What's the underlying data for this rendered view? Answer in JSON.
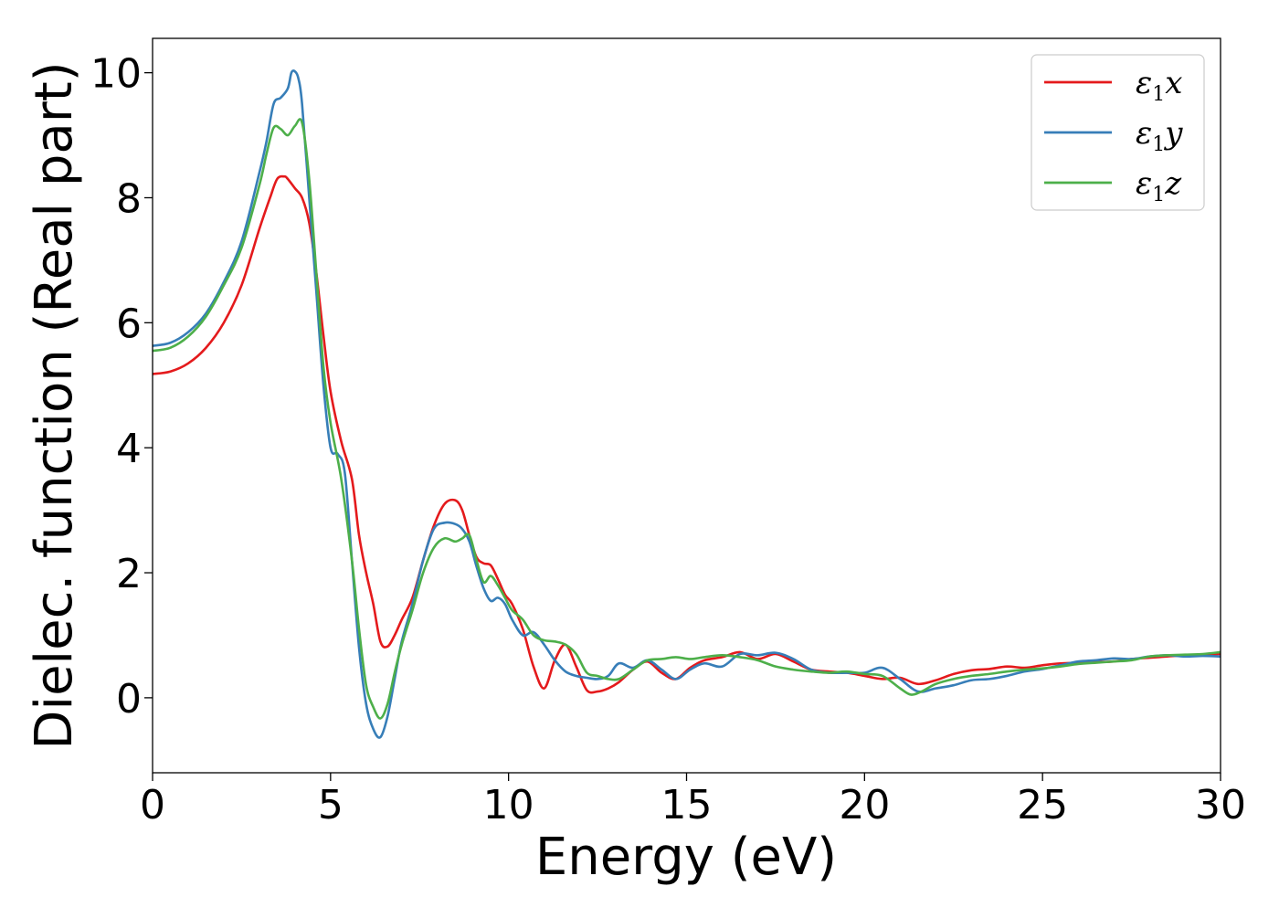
{
  "chart_data": {
    "type": "line",
    "xlabel": "Energy (eV)",
    "ylabel": "Dielec. function (Real part)",
    "xlim": [
      0,
      30
    ],
    "ylim": [
      -1.2,
      10.55
    ],
    "xticks": [
      0,
      5,
      10,
      15,
      20,
      25,
      30
    ],
    "yticks": [
      0,
      2,
      4,
      6,
      8,
      10
    ],
    "grid": false,
    "legend_position": "top-right",
    "series": [
      {
        "name": "ε1x",
        "legend_base": "ε",
        "legend_sub": "1",
        "legend_var": "x",
        "color": "#e41a1c",
        "x": [
          0,
          0.5,
          1.0,
          1.5,
          2.0,
          2.5,
          3.0,
          3.3,
          3.5,
          3.7,
          3.8,
          4.0,
          4.2,
          4.4,
          4.6,
          4.8,
          5.0,
          5.3,
          5.6,
          5.8,
          6.0,
          6.2,
          6.4,
          6.6,
          6.8,
          7.0,
          7.3,
          7.6,
          7.9,
          8.2,
          8.5,
          8.7,
          8.9,
          9.1,
          9.3,
          9.5,
          9.7,
          9.9,
          10.1,
          10.4,
          10.7,
          11.0,
          11.3,
          11.6,
          11.9,
          12.2,
          12.5,
          12.8,
          13.1,
          13.5,
          13.9,
          14.3,
          14.7,
          15.1,
          15.5,
          16.0,
          16.5,
          17.0,
          17.5,
          18.0,
          18.5,
          19.0,
          19.5,
          20.0,
          20.5,
          21.0,
          21.5,
          22.0,
          22.5,
          23.0,
          23.5,
          24.0,
          24.5,
          25.0,
          25.5,
          26.0,
          26.5,
          27.0,
          27.5,
          28.0,
          28.5,
          29.0,
          29.5,
          30.0
        ],
        "y": [
          5.18,
          5.22,
          5.35,
          5.6,
          6.0,
          6.6,
          7.5,
          8.0,
          8.3,
          8.34,
          8.3,
          8.15,
          8.0,
          7.6,
          6.8,
          5.8,
          4.9,
          4.1,
          3.5,
          2.6,
          2.0,
          1.5,
          0.9,
          0.82,
          1.0,
          1.25,
          1.6,
          2.2,
          2.75,
          3.1,
          3.16,
          3.0,
          2.6,
          2.25,
          2.15,
          2.12,
          1.9,
          1.65,
          1.5,
          1.1,
          0.5,
          0.15,
          0.6,
          0.85,
          0.5,
          0.12,
          0.1,
          0.15,
          0.25,
          0.45,
          0.58,
          0.4,
          0.3,
          0.48,
          0.6,
          0.65,
          0.73,
          0.62,
          0.7,
          0.58,
          0.45,
          0.42,
          0.4,
          0.35,
          0.3,
          0.32,
          0.22,
          0.28,
          0.38,
          0.44,
          0.46,
          0.5,
          0.48,
          0.52,
          0.55,
          0.56,
          0.57,
          0.58,
          0.62,
          0.64,
          0.66,
          0.68,
          0.69,
          0.7
        ]
      },
      {
        "name": "ε1y",
        "legend_base": "ε",
        "legend_sub": "1",
        "legend_var": "y",
        "color": "#377eb8",
        "x": [
          0,
          0.5,
          1.0,
          1.5,
          2.0,
          2.5,
          3.0,
          3.2,
          3.4,
          3.6,
          3.8,
          3.9,
          4.0,
          4.1,
          4.2,
          4.4,
          4.6,
          4.8,
          5.0,
          5.2,
          5.4,
          5.6,
          5.8,
          6.0,
          6.2,
          6.4,
          6.6,
          6.8,
          7.0,
          7.3,
          7.6,
          7.9,
          8.2,
          8.5,
          8.7,
          8.9,
          9.1,
          9.3,
          9.5,
          9.7,
          9.9,
          10.1,
          10.4,
          10.7,
          11.0,
          11.3,
          11.6,
          11.9,
          12.2,
          12.5,
          12.8,
          13.1,
          13.5,
          13.9,
          14.3,
          14.7,
          15.1,
          15.5,
          16.0,
          16.5,
          17.0,
          17.5,
          18.0,
          18.5,
          19.0,
          19.5,
          20.0,
          20.5,
          21.0,
          21.5,
          22.0,
          22.5,
          23.0,
          23.5,
          24.0,
          24.5,
          25.0,
          25.5,
          26.0,
          26.5,
          27.0,
          27.5,
          28.0,
          28.5,
          29.0,
          29.5,
          30.0
        ],
        "y": [
          5.63,
          5.68,
          5.85,
          6.15,
          6.65,
          7.3,
          8.4,
          8.9,
          9.5,
          9.6,
          9.75,
          10.0,
          10.02,
          9.9,
          9.5,
          8.0,
          6.5,
          5.0,
          4.0,
          3.9,
          3.6,
          2.2,
          0.8,
          -0.1,
          -0.5,
          -0.63,
          -0.3,
          0.3,
          0.9,
          1.5,
          2.2,
          2.7,
          2.8,
          2.78,
          2.7,
          2.5,
          2.1,
          1.75,
          1.55,
          1.6,
          1.5,
          1.25,
          1.0,
          1.05,
          0.85,
          0.6,
          0.42,
          0.35,
          0.32,
          0.3,
          0.35,
          0.55,
          0.48,
          0.6,
          0.45,
          0.3,
          0.45,
          0.55,
          0.5,
          0.7,
          0.68,
          0.72,
          0.62,
          0.45,
          0.4,
          0.4,
          0.4,
          0.48,
          0.3,
          0.1,
          0.15,
          0.2,
          0.28,
          0.3,
          0.35,
          0.42,
          0.46,
          0.52,
          0.58,
          0.6,
          0.63,
          0.62,
          0.66,
          0.68,
          0.66,
          0.67,
          0.66
        ]
      },
      {
        "name": "ε1z",
        "legend_base": "ε",
        "legend_sub": "1",
        "legend_var": "z",
        "color": "#4daf4a",
        "x": [
          0,
          0.5,
          1.0,
          1.5,
          2.0,
          2.5,
          3.0,
          3.2,
          3.4,
          3.6,
          3.8,
          4.0,
          4.2,
          4.4,
          4.6,
          4.8,
          5.0,
          5.3,
          5.6,
          5.8,
          6.0,
          6.2,
          6.4,
          6.6,
          6.8,
          7.0,
          7.3,
          7.6,
          7.9,
          8.2,
          8.5,
          8.7,
          8.9,
          9.1,
          9.3,
          9.5,
          9.7,
          9.9,
          10.1,
          10.4,
          10.7,
          11.0,
          11.3,
          11.6,
          11.9,
          12.2,
          12.5,
          12.8,
          13.1,
          13.5,
          13.9,
          14.3,
          14.7,
          15.1,
          15.5,
          16.0,
          16.5,
          17.0,
          17.5,
          18.0,
          18.5,
          19.0,
          19.5,
          20.0,
          20.5,
          21.0,
          21.3,
          21.6,
          22.0,
          22.5,
          23.0,
          23.5,
          24.0,
          24.5,
          25.0,
          25.5,
          26.0,
          26.5,
          27.0,
          27.5,
          28.0,
          28.5,
          29.0,
          29.5,
          30.0
        ],
        "y": [
          5.55,
          5.6,
          5.78,
          6.1,
          6.6,
          7.2,
          8.2,
          8.7,
          9.12,
          9.1,
          9.0,
          9.15,
          9.2,
          8.3,
          6.8,
          5.3,
          4.4,
          3.5,
          2.2,
          1.1,
          0.2,
          -0.15,
          -0.33,
          -0.1,
          0.4,
          0.85,
          1.4,
          2.0,
          2.4,
          2.55,
          2.5,
          2.55,
          2.6,
          2.2,
          1.85,
          1.95,
          1.8,
          1.6,
          1.4,
          1.25,
          1.0,
          0.92,
          0.9,
          0.85,
          0.7,
          0.4,
          0.35,
          0.3,
          0.3,
          0.45,
          0.6,
          0.62,
          0.65,
          0.62,
          0.65,
          0.68,
          0.65,
          0.6,
          0.5,
          0.45,
          0.42,
          0.4,
          0.42,
          0.38,
          0.35,
          0.15,
          0.05,
          0.1,
          0.22,
          0.3,
          0.35,
          0.38,
          0.42,
          0.45,
          0.47,
          0.5,
          0.54,
          0.56,
          0.58,
          0.6,
          0.66,
          0.68,
          0.69,
          0.7,
          0.73
        ]
      }
    ]
  }
}
